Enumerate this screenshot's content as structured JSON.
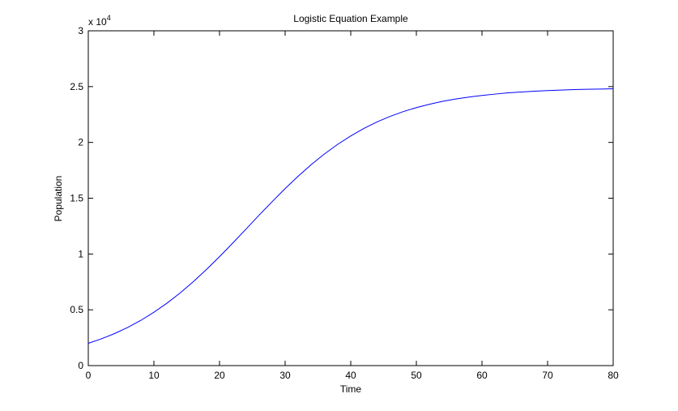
{
  "chart_data": {
    "type": "line",
    "title": "Logistic Equation Example",
    "x_label": "Time",
    "y_label": "Population",
    "y_scale_base": "x 10",
    "y_scale_exponent": "4",
    "x": [
      0,
      2,
      4,
      6,
      8,
      10,
      12,
      14,
      16,
      18,
      20,
      22,
      24,
      26,
      28,
      30,
      32,
      34,
      36,
      38,
      40,
      42,
      44,
      46,
      48,
      50,
      52,
      54,
      56,
      58,
      60,
      62,
      64,
      66,
      68,
      70,
      72,
      74,
      76,
      78,
      80
    ],
    "values": [
      0.2,
      0.24,
      0.287,
      0.342,
      0.405,
      0.478,
      0.56,
      0.651,
      0.752,
      0.861,
      0.976,
      1.097,
      1.221,
      1.346,
      1.468,
      1.586,
      1.698,
      1.802,
      1.897,
      1.982,
      2.058,
      2.125,
      2.183,
      2.233,
      2.276,
      2.312,
      2.342,
      2.368,
      2.389,
      2.406,
      2.421,
      2.433,
      2.444,
      2.452,
      2.459,
      2.464,
      2.469,
      2.473,
      2.476,
      2.478,
      2.481
    ],
    "color": "#0000ff",
    "xlim": [
      0,
      80
    ],
    "xticks": [
      0,
      10,
      20,
      30,
      40,
      50,
      60,
      70,
      80
    ],
    "ylim": [
      0,
      3
    ],
    "yticks": [
      0,
      0.5,
      1,
      1.5,
      2,
      2.5,
      3
    ],
    "grid": false
  }
}
